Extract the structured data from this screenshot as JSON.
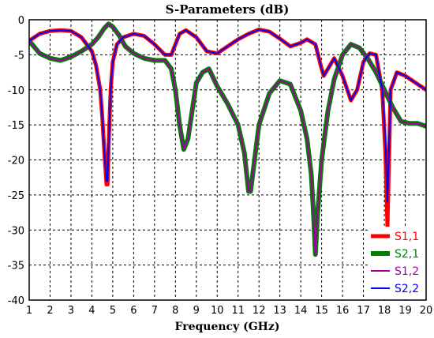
{
  "chart_data": {
    "type": "line",
    "title": "S-Parameters (dB)",
    "xlabel": "Frequency (GHz)",
    "ylabel": "",
    "xlim": [
      1,
      20
    ],
    "ylim": [
      -40,
      0
    ],
    "xticks": [
      1,
      2,
      3,
      4,
      5,
      6,
      7,
      8,
      9,
      10,
      11,
      12,
      13,
      14,
      15,
      16,
      17,
      18,
      19,
      20
    ],
    "yticks": [
      0,
      -5,
      -10,
      -15,
      -20,
      -25,
      -30,
      -35,
      -40
    ],
    "grid": true,
    "legend_position": "bottom-right",
    "series": [
      {
        "name": "S1,1",
        "color": "#ff0000",
        "x": [
          1,
          1.5,
          2,
          2.5,
          3,
          3.5,
          4,
          4.2,
          4.4,
          4.5,
          4.6,
          4.7,
          4.75,
          4.8,
          4.9,
          5,
          5.2,
          5.5,
          6,
          6.5,
          7,
          7.5,
          7.8,
          8.2,
          8.5,
          9,
          9.5,
          10,
          10.5,
          11,
          11.5,
          12,
          12.5,
          13,
          13.5,
          14,
          14.3,
          14.7,
          15,
          15.1,
          15.3,
          15.6,
          16,
          16.4,
          16.7,
          17,
          17.3,
          17.6,
          17.9,
          18.05,
          18.15,
          18.3,
          18.6,
          19,
          19.5,
          20
        ],
        "y": [
          -3,
          -2,
          -1.6,
          -1.5,
          -1.6,
          -2.5,
          -4.5,
          -6.5,
          -10,
          -14,
          -19,
          -23.5,
          -23.5,
          -18,
          -10,
          -6,
          -3.5,
          -2.5,
          -2,
          -2.3,
          -3.5,
          -5,
          -5,
          -2,
          -1.5,
          -2.5,
          -4.5,
          -4.8,
          -3.8,
          -2.8,
          -2,
          -1.4,
          -1.7,
          -2.7,
          -3.8,
          -3.3,
          -2.8,
          -3.5,
          -7,
          -8,
          -7,
          -5.5,
          -8,
          -11.5,
          -10,
          -6,
          -4.8,
          -5,
          -10,
          -19,
          -29.5,
          -10,
          -7.5,
          -8,
          -9,
          -10
        ]
      },
      {
        "name": "S2,1",
        "color": "#008000",
        "x": [
          1,
          1.5,
          2,
          2.5,
          3,
          3.5,
          4,
          4.3,
          4.6,
          4.8,
          5,
          5.3,
          5.6,
          6,
          6.5,
          7,
          7.5,
          7.8,
          8,
          8.2,
          8.4,
          8.6,
          8.8,
          9,
          9.3,
          9.6,
          10,
          10.5,
          11,
          11.3,
          11.5,
          11.6,
          11.7,
          12,
          12.5,
          13,
          13.5,
          14,
          14.3,
          14.5,
          14.6,
          14.7,
          14.8,
          15,
          15.3,
          15.6,
          16,
          16.4,
          16.8,
          17.2,
          17.6,
          18,
          18.4,
          18.8,
          19.2,
          19.6,
          20
        ],
        "y": [
          -3,
          -4.8,
          -5.5,
          -5.8,
          -5.3,
          -4.5,
          -3.5,
          -2.5,
          -1.2,
          -0.6,
          -1,
          -2.2,
          -3.8,
          -4.8,
          -5.5,
          -5.8,
          -5.8,
          -7,
          -10,
          -15,
          -18.5,
          -17,
          -13,
          -9,
          -7.5,
          -7,
          -9.5,
          -12,
          -15,
          -19,
          -24.5,
          -24.5,
          -22,
          -15,
          -10.5,
          -8.7,
          -9.2,
          -13,
          -17,
          -22,
          -27,
          -33.5,
          -28,
          -20,
          -13,
          -8.5,
          -5,
          -3.5,
          -4,
          -5.5,
          -7.5,
          -10,
          -12.5,
          -14.5,
          -14.8,
          -14.8,
          -15.2
        ]
      },
      {
        "name": "S1,2",
        "color": "#a000a0",
        "x": [
          1,
          1.5,
          2,
          2.5,
          3,
          3.5,
          4,
          4.3,
          4.6,
          4.8,
          5,
          5.3,
          5.6,
          6,
          6.5,
          7,
          7.5,
          7.8,
          8,
          8.2,
          8.4,
          8.6,
          8.8,
          9,
          9.3,
          9.6,
          10,
          10.5,
          11,
          11.3,
          11.5,
          11.6,
          11.7,
          12,
          12.5,
          13,
          13.5,
          14,
          14.3,
          14.5,
          14.6,
          14.7,
          14.8,
          15,
          15.3,
          15.6,
          16,
          16.4,
          16.8,
          17.2,
          17.6,
          18,
          18.4,
          18.8,
          19.2,
          19.6,
          20
        ],
        "y": [
          -3,
          -4.8,
          -5.5,
          -5.8,
          -5.3,
          -4.5,
          -3.5,
          -2.5,
          -1.2,
          -0.6,
          -1,
          -2.2,
          -3.8,
          -4.8,
          -5.5,
          -5.8,
          -5.8,
          -7,
          -10,
          -15,
          -18.5,
          -17,
          -13,
          -9,
          -7.5,
          -7,
          -9.5,
          -12,
          -15,
          -19,
          -24.5,
          -24.5,
          -22,
          -15,
          -10.5,
          -8.7,
          -9.2,
          -13,
          -17,
          -22,
          -27,
          -33.5,
          -28,
          -20,
          -13,
          -8.5,
          -5,
          -3.5,
          -4,
          -5.5,
          -7.5,
          -10,
          -12.5,
          -14.5,
          -14.8,
          -14.8,
          -15.2
        ]
      },
      {
        "name": "S2,2",
        "color": "#0000ff",
        "x": [
          1,
          1.5,
          2,
          2.5,
          3,
          3.5,
          4,
          4.2,
          4.4,
          4.5,
          4.6,
          4.7,
          4.75,
          4.8,
          4.9,
          5,
          5.2,
          5.5,
          6,
          6.5,
          7,
          7.5,
          7.8,
          8.2,
          8.5,
          9,
          9.5,
          10,
          10.5,
          11,
          11.5,
          12,
          12.5,
          13,
          13.5,
          14,
          14.3,
          14.7,
          15,
          15.1,
          15.3,
          15.6,
          16,
          16.4,
          16.7,
          17,
          17.3,
          17.6,
          17.9,
          18.05,
          18.15,
          18.3,
          18.6,
          19,
          19.5,
          20
        ],
        "y": [
          -3,
          -2,
          -1.6,
          -1.5,
          -1.6,
          -2.5,
          -4.5,
          -6.5,
          -10,
          -14,
          -19,
          -23,
          -23,
          -18,
          -10,
          -6,
          -3.5,
          -2.5,
          -2,
          -2.3,
          -3.5,
          -5,
          -5,
          -2,
          -1.5,
          -2.5,
          -4.5,
          -4.8,
          -3.8,
          -2.8,
          -2,
          -1.4,
          -1.7,
          -2.7,
          -3.8,
          -3.3,
          -2.8,
          -3.5,
          -7,
          -8,
          -7,
          -5.5,
          -8,
          -11.5,
          -10,
          -6,
          -4.8,
          -5,
          -10,
          -17,
          -26,
          -10,
          -7.5,
          -8,
          -9,
          -10
        ]
      }
    ]
  }
}
